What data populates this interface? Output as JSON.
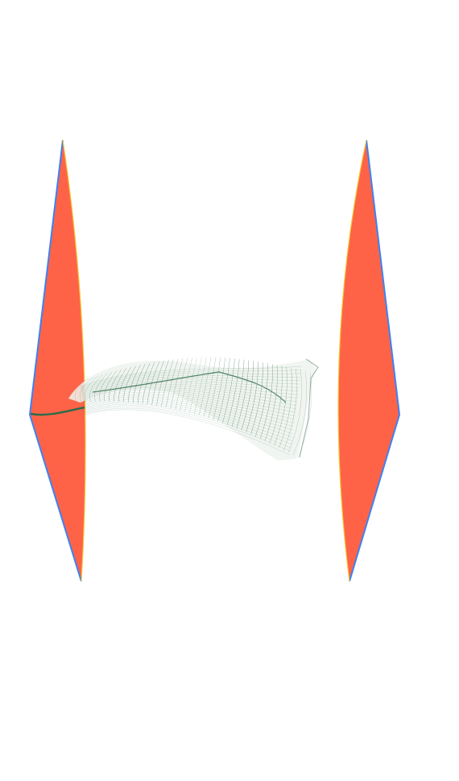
{
  "canvas": {
    "background": "#ffffff"
  },
  "colors": {
    "panel_fill": "#ff6347",
    "panel_outer_edge": "#3b82f6",
    "panel_inner_edge": "#f4c430",
    "ribbon_line": "#2e6b4a",
    "ribbon_sheen": "#e8efe9"
  },
  "objects": [
    {
      "name": "left-panel",
      "shape": "curved-diamond"
    },
    {
      "name": "right-panel",
      "shape": "curved-diamond"
    },
    {
      "name": "twisted-ribbon",
      "shape": "line-surface"
    }
  ]
}
